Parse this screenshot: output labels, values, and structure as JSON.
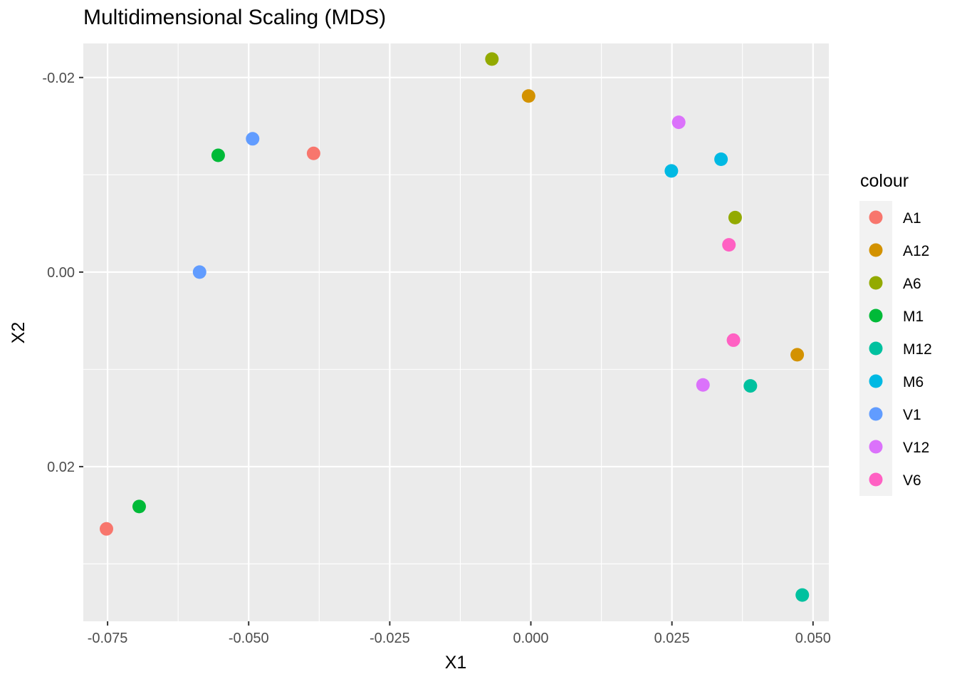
{
  "chart_data": {
    "type": "scatter",
    "title": "Multidimensional Scaling (MDS)",
    "xlabel": "X1",
    "ylabel": "X2",
    "xlim": [
      -0.0793,
      0.0528
    ],
    "ylim": [
      -0.0235,
      0.0359
    ],
    "y_reversed": true,
    "x_ticks": [
      {
        "value": -0.075,
        "label": "-0.075"
      },
      {
        "value": -0.05,
        "label": "-0.050"
      },
      {
        "value": -0.025,
        "label": "-0.025"
      },
      {
        "value": 0.0,
        "label": "0.000"
      },
      {
        "value": 0.025,
        "label": "0.025"
      },
      {
        "value": 0.05,
        "label": "0.050"
      }
    ],
    "y_ticks": [
      {
        "value": -0.02,
        "label": "-0.02"
      },
      {
        "value": 0.0,
        "label": "0.00"
      },
      {
        "value": 0.02,
        "label": "0.02"
      }
    ],
    "grid": true,
    "legend_title": "colour",
    "legend_position": "right",
    "series": [
      {
        "name": "A1",
        "color": "#F8766D",
        "points": [
          [
            -0.0385,
            -0.0122
          ],
          [
            -0.0752,
            0.0264
          ]
        ]
      },
      {
        "name": "A12",
        "color": "#D39200",
        "points": [
          [
            -0.0004,
            -0.0181
          ],
          [
            0.0472,
            0.0085
          ]
        ]
      },
      {
        "name": "A6",
        "color": "#93AA00",
        "points": [
          [
            -0.0069,
            -0.0219
          ],
          [
            0.0362,
            -0.0056
          ]
        ]
      },
      {
        "name": "M1",
        "color": "#00BA38",
        "points": [
          [
            -0.0554,
            -0.012
          ],
          [
            -0.0694,
            0.0241
          ]
        ]
      },
      {
        "name": "M12",
        "color": "#00C19F",
        "points": [
          [
            0.0389,
            0.0117
          ],
          [
            0.0481,
            0.0332
          ]
        ]
      },
      {
        "name": "M6",
        "color": "#00B9E3",
        "points": [
          [
            0.0249,
            -0.0104
          ],
          [
            0.0337,
            -0.0116
          ]
        ]
      },
      {
        "name": "V1",
        "color": "#619CFF",
        "points": [
          [
            -0.0493,
            -0.0137
          ],
          [
            -0.0587,
            0.0
          ]
        ]
      },
      {
        "name": "V12",
        "color": "#DB72FB",
        "points": [
          [
            0.0262,
            -0.0154
          ],
          [
            0.0305,
            0.0116
          ]
        ]
      },
      {
        "name": "V6",
        "color": "#FF61C3",
        "points": [
          [
            0.0351,
            -0.0028
          ],
          [
            0.0359,
            0.007
          ]
        ]
      }
    ]
  }
}
